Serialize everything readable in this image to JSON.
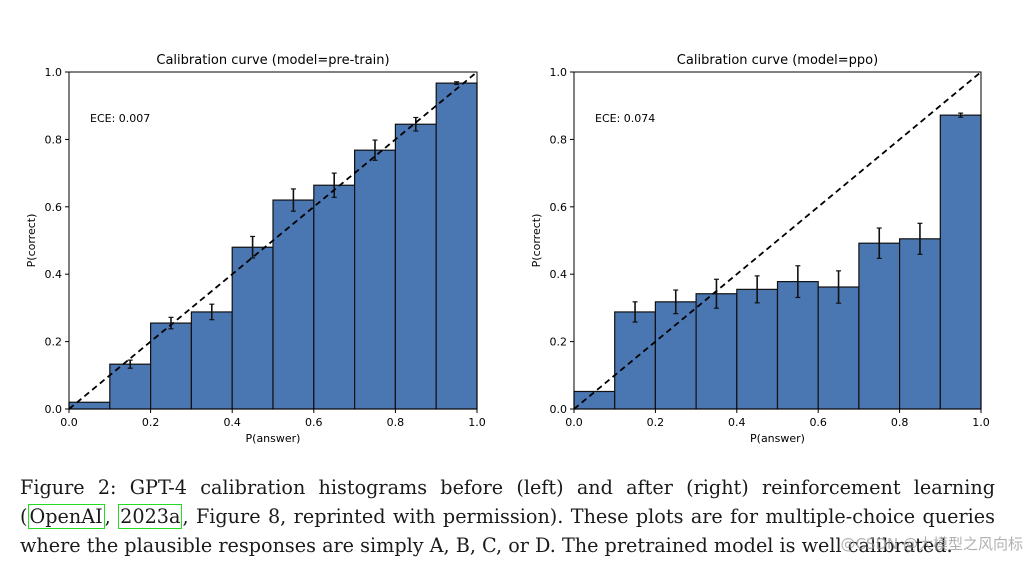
{
  "chart_data": [
    {
      "type": "bar",
      "title": "Calibration curve (model=pre-train)",
      "xlabel": "P(answer)",
      "ylabel": "P(correct)",
      "annotation": "ECE: 0.007",
      "xlim": [
        0,
        1
      ],
      "ylim": [
        0,
        1
      ],
      "xticks": [
        "0.0",
        "0.2",
        "0.4",
        "0.6",
        "0.8",
        "1.0"
      ],
      "yticks": [
        "0.0",
        "0.2",
        "0.4",
        "0.6",
        "0.8",
        "1.0"
      ],
      "bin_edges": [
        0.0,
        0.1,
        0.2,
        0.3,
        0.4,
        0.5,
        0.6,
        0.7,
        0.8,
        0.9,
        1.0
      ],
      "values": [
        0.02,
        0.133,
        0.255,
        0.288,
        0.48,
        0.62,
        0.664,
        0.768,
        0.845,
        0.967
      ],
      "errors": [
        null,
        0.012,
        0.017,
        0.023,
        0.032,
        0.033,
        0.036,
        0.03,
        0.02,
        0.004
      ],
      "reference_line": "diagonal y = x (dashed)",
      "bar_color": "#4a76b1",
      "grid": false
    },
    {
      "type": "bar",
      "title": "Calibration curve (model=ppo)",
      "xlabel": "P(answer)",
      "ylabel": "P(correct)",
      "annotation": "ECE: 0.074",
      "xlim": [
        0,
        1
      ],
      "ylim": [
        0,
        1
      ],
      "xticks": [
        "0.0",
        "0.2",
        "0.4",
        "0.6",
        "0.8",
        "1.0"
      ],
      "yticks": [
        "0.0",
        "0.2",
        "0.4",
        "0.6",
        "0.8",
        "1.0"
      ],
      "bin_edges": [
        0.0,
        0.1,
        0.2,
        0.3,
        0.4,
        0.5,
        0.6,
        0.7,
        0.8,
        0.9,
        1.0
      ],
      "values": [
        0.052,
        0.288,
        0.318,
        0.342,
        0.355,
        0.378,
        0.362,
        0.492,
        0.505,
        0.872
      ],
      "errors": [
        null,
        0.03,
        0.035,
        0.043,
        0.04,
        0.047,
        0.048,
        0.045,
        0.046,
        0.006
      ],
      "reference_line": "diagonal y = x (dashed)",
      "bar_color": "#4a76b1",
      "grid": false
    }
  ],
  "caption": {
    "text_before": "Figure 2: GPT-4 calibration histograms before (left) and after (right) reinforcement learning (",
    "cite_author": "OpenAI",
    "separator": ", ",
    "cite_year": "2023a",
    "text_after": ", Figure 8, reprinted with permission). These plots are for multiple-choice queries where the plausible responses are simply A, B, C, or D. The pretrained model is well calibrated."
  },
  "watermark": "@CSDN @大模型之风向标"
}
